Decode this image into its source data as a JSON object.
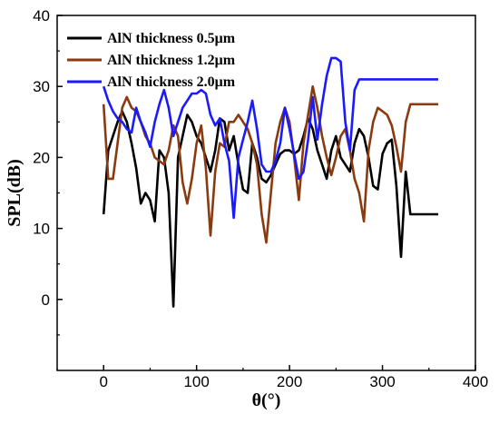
{
  "chart_data": {
    "type": "line",
    "xlabel": "θ(°)",
    "ylabel": "SPL(dB)",
    "xlim": [
      -50,
      400
    ],
    "ylim": [
      -10,
      40
    ],
    "xticks": [
      0,
      100,
      200,
      300,
      400
    ],
    "yticks": [
      0,
      10,
      20,
      30,
      40
    ],
    "grid": false,
    "legend_position": "top-left",
    "series": [
      {
        "name": "AlN thickness 0.5μm",
        "color": "#000000",
        "x": [
          0,
          5,
          10,
          15,
          20,
          25,
          30,
          35,
          40,
          45,
          50,
          55,
          60,
          65,
          70,
          75,
          80,
          85,
          90,
          95,
          100,
          105,
          110,
          115,
          120,
          125,
          130,
          135,
          140,
          145,
          150,
          155,
          160,
          165,
          170,
          175,
          180,
          185,
          190,
          195,
          200,
          205,
          210,
          215,
          220,
          225,
          230,
          235,
          240,
          245,
          250,
          255,
          260,
          265,
          270,
          275,
          280,
          285,
          290,
          295,
          300,
          305,
          310,
          315,
          320,
          325,
          330,
          335,
          340,
          345,
          350,
          355,
          360
        ],
        "y": [
          12,
          21,
          23,
          25,
          26.5,
          25,
          22,
          18.5,
          13.5,
          15,
          14,
          11,
          21,
          20,
          15,
          -1,
          20,
          23,
          26,
          25,
          23,
          22,
          20,
          18,
          21,
          25.5,
          25,
          21,
          23,
          19,
          15.5,
          15,
          22,
          20,
          17,
          16.5,
          17.5,
          19,
          20.5,
          21,
          21,
          20.5,
          21,
          23,
          25.5,
          24,
          21,
          19,
          17,
          21,
          23,
          20,
          19,
          18,
          22,
          24,
          23,
          20,
          16,
          15.5,
          20.5,
          22,
          22.5,
          16,
          6,
          18,
          12,
          12,
          12,
          12,
          12,
          12,
          12
        ]
      },
      {
        "name": "AlN thickness 1.2μm",
        "color": "#8b3a0f",
        "x": [
          0,
          5,
          10,
          15,
          20,
          25,
          30,
          35,
          40,
          45,
          50,
          55,
          60,
          65,
          70,
          75,
          80,
          85,
          90,
          95,
          100,
          105,
          110,
          115,
          120,
          125,
          130,
          135,
          140,
          145,
          150,
          155,
          160,
          165,
          170,
          175,
          180,
          185,
          190,
          195,
          200,
          205,
          210,
          215,
          220,
          225,
          230,
          235,
          240,
          245,
          250,
          255,
          260,
          265,
          270,
          275,
          280,
          285,
          290,
          295,
          300,
          305,
          310,
          315,
          320,
          325,
          330,
          335,
          340,
          345,
          350,
          355,
          360
        ],
        "y": [
          27.5,
          17,
          17,
          22,
          27,
          28.5,
          27,
          26.5,
          25,
          23,
          22,
          20,
          19.5,
          19,
          21,
          24.5,
          23,
          16.5,
          13.5,
          17,
          22,
          24.5,
          18.5,
          9,
          18,
          22,
          21.5,
          25,
          25,
          26,
          25,
          24,
          22,
          19,
          12,
          8,
          15,
          22,
          25,
          27,
          25,
          20,
          14,
          22,
          26,
          30,
          27,
          23,
          20,
          17.5,
          20,
          23,
          24,
          21,
          17,
          15,
          11,
          21,
          25,
          27,
          26.5,
          26,
          24.5,
          21.5,
          18,
          25,
          27.5,
          27.5,
          27.5,
          27.5,
          27.5,
          27.5,
          27.5
        ]
      },
      {
        "name": "AlN thickness 2.0μm",
        "color": "#1a1aff",
        "x": [
          0,
          5,
          10,
          15,
          20,
          25,
          30,
          35,
          40,
          45,
          50,
          55,
          60,
          65,
          70,
          75,
          80,
          85,
          90,
          95,
          100,
          105,
          110,
          115,
          120,
          125,
          130,
          135,
          140,
          145,
          150,
          155,
          160,
          165,
          170,
          175,
          180,
          185,
          190,
          195,
          200,
          205,
          210,
          215,
          220,
          225,
          230,
          235,
          240,
          245,
          250,
          255,
          260,
          265,
          270,
          275,
          280,
          285,
          290,
          295,
          300,
          305,
          310,
          315,
          320,
          325,
          330,
          335,
          340,
          345,
          350,
          355,
          360
        ],
        "y": [
          30,
          28,
          26.5,
          25.5,
          25,
          24,
          23.5,
          27,
          25,
          23.5,
          21.5,
          25,
          27.5,
          29.5,
          27,
          23,
          25,
          27,
          28,
          29,
          29,
          29.5,
          29,
          26,
          24.5,
          25.5,
          22,
          19.5,
          11.5,
          20,
          22.5,
          25,
          28,
          24,
          19,
          18,
          18,
          19.5,
          22,
          27,
          24,
          20.5,
          17,
          18,
          22.5,
          28.5,
          22.5,
          27.5,
          31.5,
          34,
          34,
          33.5,
          25,
          21,
          29.5,
          31,
          31,
          31,
          31,
          31,
          31,
          31,
          31,
          31,
          31,
          31,
          31,
          31,
          31,
          31,
          31,
          31,
          31
        ]
      }
    ]
  }
}
